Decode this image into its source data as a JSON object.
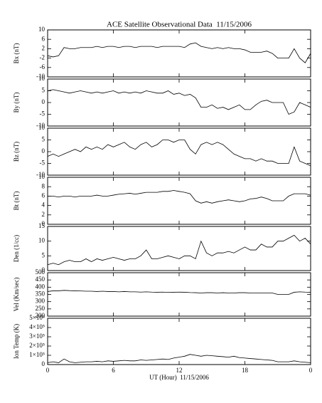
{
  "chart_data": {
    "type": "line",
    "title": "ACE Satellite Observational Data  11/15/2006",
    "x_label": "UT (Hour)  11/15/2006",
    "xlim": [
      0,
      24
    ],
    "xticks": [
      0,
      6,
      12,
      18,
      {
        "value": 24,
        "label": "0"
      }
    ],
    "x": [
      0,
      0.5,
      1,
      1.5,
      2,
      2.5,
      3,
      3.5,
      4,
      4.5,
      5,
      5.5,
      6,
      6.5,
      7,
      7.5,
      8,
      8.5,
      9,
      9.5,
      10,
      10.5,
      11,
      11.5,
      12,
      12.5,
      13,
      13.5,
      14,
      14.5,
      15,
      15.5,
      16,
      16.5,
      17,
      17.5,
      18,
      18.5,
      19,
      19.5,
      20,
      20.5,
      21,
      21.5,
      22,
      22.5,
      23,
      23.5,
      24
    ],
    "panels": [
      {
        "y_label": "Bx (nT)",
        "ylim": [
          -10,
          10
        ],
        "yticks": [
          -10,
          -6,
          -2,
          2,
          6,
          10
        ],
        "values": [
          -1,
          -1.5,
          -1,
          2.5,
          2,
          2,
          2.5,
          2.5,
          2.5,
          3,
          2.5,
          3,
          3,
          2.5,
          3,
          3,
          2.5,
          3,
          3,
          3,
          2.5,
          3,
          3,
          3,
          3,
          2.5,
          4,
          4.5,
          3,
          2.5,
          2,
          2.5,
          2,
          2.5,
          2,
          2,
          1.5,
          0.5,
          0.5,
          0.5,
          1,
          0,
          -2,
          -2,
          -2,
          2,
          -2,
          -4,
          0
        ]
      },
      {
        "y_label": "By (nT)",
        "ylim": [
          -10,
          10
        ],
        "yticks": [
          -10,
          -5,
          0,
          5,
          10
        ],
        "values": [
          5,
          5.5,
          5,
          4.5,
          4,
          4.5,
          5,
          4.5,
          4,
          4.5,
          4,
          4.5,
          5,
          4,
          4.5,
          4,
          4.5,
          4,
          5,
          4.5,
          4,
          4,
          5,
          3.5,
          4,
          3,
          3.5,
          2,
          -2,
          -2,
          -1,
          -2.5,
          -2,
          -3,
          -2,
          -1,
          -3,
          -3,
          -1,
          0.5,
          1,
          0,
          0,
          0,
          -5,
          -4,
          0,
          -1,
          -2
        ]
      },
      {
        "y_label": "Bz (nT)",
        "ylim": [
          -10,
          10
        ],
        "yticks": [
          -10,
          -5,
          0,
          5,
          10
        ],
        "values": [
          -2,
          -1,
          -2,
          -1,
          0,
          1,
          0,
          2,
          1,
          2,
          1,
          3,
          2,
          3,
          4,
          2,
          1,
          3,
          4,
          2,
          3,
          5,
          5,
          4,
          5,
          5,
          1,
          -1,
          3,
          4,
          3,
          4,
          3,
          1,
          -1,
          -2,
          -3,
          -3,
          -4,
          -3,
          -4,
          -4,
          -5,
          -5,
          -5,
          2,
          -4,
          -5,
          -6
        ]
      },
      {
        "y_label": "Bt (nT)",
        "ylim": [
          0,
          10
        ],
        "yticks": [
          0,
          2,
          4,
          6,
          8,
          10
        ],
        "values": [
          6,
          6,
          5.8,
          6,
          6,
          5.8,
          6,
          6,
          6,
          6.2,
          6,
          6,
          6.2,
          6.4,
          6.5,
          6.6,
          6.4,
          6.6,
          6.8,
          6.8,
          6.8,
          7,
          7,
          7.2,
          7,
          6.8,
          6.5,
          5,
          4.5,
          4.8,
          4.5,
          4.8,
          5,
          5.2,
          5,
          4.8,
          5,
          5.4,
          5.5,
          5.8,
          5.5,
          5,
          5,
          5,
          6,
          6.5,
          6.5,
          6.5,
          6.2
        ]
      },
      {
        "y_label": "Den (1/cc)",
        "ylim": [
          0,
          15
        ],
        "yticks": [
          0,
          5,
          10,
          15
        ],
        "values": [
          2,
          2.5,
          2,
          3,
          3.5,
          3,
          3,
          4,
          3,
          4,
          3.5,
          4,
          4.5,
          4,
          3.5,
          4,
          4,
          5,
          7,
          4,
          4,
          4.5,
          5,
          4.5,
          4,
          5,
          5,
          4,
          10,
          6,
          5,
          6,
          6,
          6.5,
          6,
          7,
          8,
          7,
          7,
          9,
          8,
          8,
          10,
          10,
          11,
          12,
          10,
          11,
          9
        ]
      },
      {
        "y_label": "Vel (Km/sec)",
        "ylim": [
          200,
          500
        ],
        "yticks": [
          200,
          250,
          300,
          350,
          400,
          450,
          500
        ],
        "values": [
          370,
          375,
          375,
          378,
          376,
          375,
          374,
          372,
          372,
          370,
          372,
          370,
          370,
          368,
          370,
          368,
          368,
          366,
          368,
          366,
          365,
          366,
          364,
          365,
          366,
          365,
          363,
          362,
          360,
          362,
          362,
          360,
          362,
          360,
          360,
          362,
          362,
          360,
          360,
          360,
          360,
          360,
          350,
          350,
          350,
          365,
          368,
          366,
          365
        ]
      },
      {
        "y_label": "Ion Temp (K)",
        "ylim": [
          0,
          500000
        ],
        "yticks": [
          0,
          {
            "value": 100000,
            "label": "1×10⁵"
          },
          {
            "value": 200000,
            "label": "2×10⁵"
          },
          {
            "value": 300000,
            "label": "3×10⁵"
          },
          {
            "value": 400000,
            "label": "4×10⁵"
          },
          {
            "value": 500000,
            "label": "5×10⁵"
          }
        ],
        "values": [
          20000,
          30000,
          20000,
          60000,
          30000,
          20000,
          25000,
          30000,
          30000,
          35000,
          30000,
          40000,
          35000,
          40000,
          45000,
          40000,
          40000,
          50000,
          45000,
          50000,
          55000,
          60000,
          55000,
          70000,
          80000,
          90000,
          110000,
          100000,
          90000,
          100000,
          95000,
          90000,
          85000,
          80000,
          90000,
          75000,
          70000,
          65000,
          60000,
          55000,
          50000,
          45000,
          30000,
          30000,
          30000,
          40000,
          30000,
          25000,
          20000
        ]
      }
    ]
  }
}
